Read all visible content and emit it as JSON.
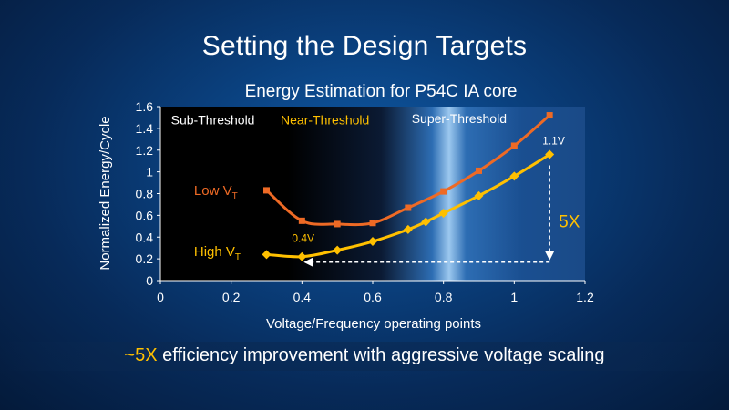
{
  "slide": {
    "title": "Setting the Design Targets",
    "footer_highlight": "~5X",
    "footer_text": " efficiency improvement with aggressive voltage scaling"
  },
  "colors": {
    "low_vt": "#ee6a25",
    "high_vt": "#ffc000",
    "sub_threshold_label": "#ffffff",
    "near_threshold_label": "#ffc000",
    "super_threshold_label": "#ffffff",
    "axis_text": "#ffffff"
  },
  "chart_data": {
    "type": "line",
    "title": "Energy Estimation for P54C IA core",
    "xlabel": "Voltage/Frequency operating points",
    "ylabel": "Normalized Energy/Cycle",
    "xlim": [
      0,
      1.2
    ],
    "ylim": [
      0,
      1.6
    ],
    "x_ticks": [
      "0",
      "0.2",
      "0.4",
      "0.6",
      "0.8",
      "1",
      "1.2"
    ],
    "y_ticks": [
      "0",
      "0.2",
      "0.4",
      "0.6",
      "0.8",
      "1",
      "1.2",
      "1.4",
      "1.6"
    ],
    "grid": false,
    "regions": [
      {
        "label": "Sub-Threshold"
      },
      {
        "label": "Near-Threshold"
      },
      {
        "label": "Super-Threshold"
      }
    ],
    "series": [
      {
        "name": "Low VT",
        "label_main": "Low V",
        "label_sub": "T",
        "marker": "square",
        "x": [
          0.3,
          0.4,
          0.5,
          0.6,
          0.7,
          0.8,
          0.9,
          1.0,
          1.1
        ],
        "y": [
          0.83,
          0.55,
          0.52,
          0.53,
          0.67,
          0.82,
          1.01,
          1.24,
          1.52
        ]
      },
      {
        "name": "High VT",
        "label_main": "High V",
        "label_sub": "T",
        "marker": "diamond",
        "x": [
          0.3,
          0.4,
          0.5,
          0.6,
          0.7,
          0.75,
          0.8,
          0.9,
          1.0,
          1.1
        ],
        "y": [
          0.24,
          0.22,
          0.28,
          0.36,
          0.47,
          0.54,
          0.62,
          0.78,
          0.96,
          1.16
        ]
      }
    ],
    "annotations": {
      "min_point_label": "0.4V",
      "max_point_label": "1.1V",
      "ratio_label": "5X"
    }
  }
}
